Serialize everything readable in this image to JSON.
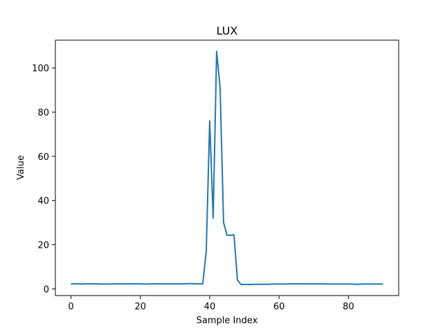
{
  "chart_data": {
    "type": "line",
    "title": "LUX",
    "xlabel": "Sample Index",
    "ylabel": "Value",
    "xlim": [
      -4.5,
      94.5
    ],
    "ylim": [
      -3.0,
      112.6
    ],
    "xticks": [
      0,
      20,
      40,
      60,
      80
    ],
    "yticks": [
      0,
      20,
      40,
      60,
      80,
      100
    ],
    "grid": false,
    "legend": "none",
    "series": [
      {
        "name": "LUX",
        "color": "#1f77b4",
        "x": [
          0,
          1,
          2,
          3,
          4,
          5,
          6,
          7,
          8,
          9,
          10,
          11,
          12,
          13,
          14,
          15,
          16,
          17,
          18,
          19,
          20,
          21,
          22,
          23,
          24,
          25,
          26,
          27,
          28,
          29,
          30,
          31,
          32,
          33,
          34,
          35,
          36,
          37,
          38,
          39,
          40,
          41,
          42,
          43,
          44,
          45,
          46,
          47,
          48,
          49,
          50,
          51,
          52,
          53,
          54,
          55,
          56,
          57,
          58,
          59,
          60,
          61,
          62,
          63,
          64,
          65,
          66,
          67,
          68,
          69,
          70,
          71,
          72,
          73,
          74,
          75,
          76,
          77,
          78,
          79,
          80,
          81,
          82,
          83,
          84,
          85,
          86,
          87,
          88,
          89,
          90
        ],
        "values": [
          2.3,
          2.3,
          2.3,
          2.2,
          2.3,
          2.3,
          2.3,
          2.3,
          2.3,
          2.2,
          2.2,
          2.2,
          2.3,
          2.3,
          2.3,
          2.3,
          2.3,
          2.3,
          2.3,
          2.3,
          2.3,
          2.2,
          2.2,
          2.3,
          2.3,
          2.3,
          2.3,
          2.3,
          2.3,
          2.3,
          2.3,
          2.3,
          2.3,
          2.3,
          2.4,
          2.4,
          2.3,
          2.3,
          2.3,
          17.0,
          76.0,
          32.0,
          107.5,
          91.0,
          30.0,
          24.3,
          24.3,
          24.5,
          4.0,
          2.0,
          2.0,
          2.0,
          2.0,
          2.1,
          2.1,
          2.1,
          2.1,
          2.1,
          2.2,
          2.2,
          2.2,
          2.2,
          2.2,
          2.3,
          2.3,
          2.3,
          2.3,
          2.3,
          2.3,
          2.3,
          2.3,
          2.3,
          2.3,
          2.3,
          2.2,
          2.2,
          2.2,
          2.2,
          2.2,
          2.2,
          2.2,
          2.2,
          2.1,
          2.1,
          2.2,
          2.2,
          2.2,
          2.2,
          2.2,
          2.2,
          2.2
        ]
      }
    ]
  }
}
